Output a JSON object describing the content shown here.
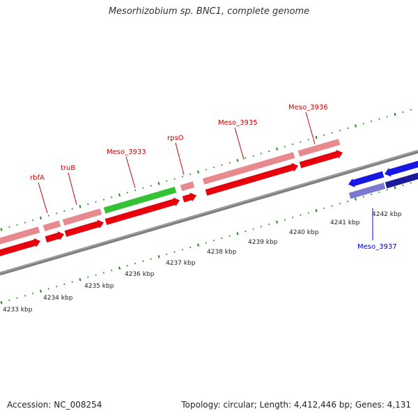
{
  "title": "Mesorhizobium sp. BNC1, complete genome",
  "footer": {
    "accession": "Accession: NC_008254",
    "summary": "Topology: circular; Length: 4,412,446 bp; Genes: 4,131"
  },
  "colors": {
    "forward_gene": "#e8000c",
    "forward_gene_dark": "#b40000",
    "cds_light": "#e78a8f",
    "rna_gene": "#36c236",
    "reverse_gene": "#1818e6",
    "reverse_cds_light": "#7a78cf",
    "backbone": "#7e7e7e",
    "tick": "#1a8c1a",
    "forward_label": "#cc0000",
    "reverse_label": "#0000bb"
  },
  "scale_labels": [
    "4233 kbp",
    "4234 kbp",
    "4235 kbp",
    "4236 kbp",
    "4237 kbp",
    "4238 kbp",
    "4239 kbp",
    "4240 kbp",
    "4241 kbp",
    "4242 kbp"
  ],
  "gene_labels": [
    {
      "name": "rbfA",
      "strand": "forward"
    },
    {
      "name": "truB",
      "strand": "forward"
    },
    {
      "name": "Meso_3933",
      "strand": "forward"
    },
    {
      "name": "rpsO",
      "strand": "forward"
    },
    {
      "name": "Meso_3935",
      "strand": "forward"
    },
    {
      "name": "Meso_3936",
      "strand": "forward"
    },
    {
      "name": "Meso_3937",
      "strand": "reverse"
    }
  ]
}
